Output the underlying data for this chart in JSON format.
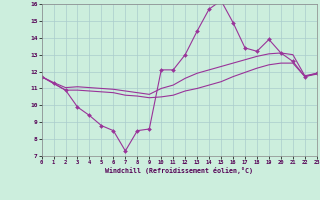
{
  "xlabel": "Windchill (Refroidissement éolien,°C)",
  "bg_color": "#cceedd",
  "grid_color": "#aacccc",
  "line_color": "#993399",
  "xlim": [
    0,
    23
  ],
  "ylim": [
    7,
    16
  ],
  "xticks": [
    0,
    1,
    2,
    3,
    4,
    5,
    6,
    7,
    8,
    9,
    10,
    11,
    12,
    13,
    14,
    15,
    16,
    17,
    18,
    19,
    20,
    21,
    22,
    23
  ],
  "yticks": [
    7,
    8,
    9,
    10,
    11,
    12,
    13,
    14,
    15,
    16
  ],
  "line_main_x": [
    0,
    1,
    2,
    3,
    4,
    5,
    6,
    7,
    8,
    9,
    10,
    11,
    12,
    13,
    14,
    15,
    16,
    17,
    18,
    19,
    20,
    21,
    22,
    23
  ],
  "line_main_y": [
    11.7,
    11.3,
    10.9,
    9.9,
    9.4,
    8.8,
    8.5,
    7.3,
    8.5,
    8.6,
    12.1,
    12.1,
    13.0,
    14.4,
    15.7,
    16.2,
    14.9,
    13.4,
    13.2,
    13.9,
    13.1,
    12.6,
    11.7,
    11.9
  ],
  "line_upper_x": [
    0,
    1,
    2,
    3,
    4,
    5,
    6,
    7,
    8,
    9,
    10,
    11,
    12,
    13,
    14,
    15,
    16,
    17,
    18,
    19,
    20,
    21,
    22,
    23
  ],
  "line_upper_y": [
    11.7,
    11.35,
    11.05,
    11.1,
    11.05,
    11.0,
    10.95,
    10.85,
    10.75,
    10.65,
    11.0,
    11.2,
    11.6,
    11.9,
    12.1,
    12.3,
    12.5,
    12.7,
    12.9,
    13.05,
    13.1,
    13.0,
    11.75,
    11.9
  ],
  "line_lower_x": [
    0,
    1,
    2,
    3,
    4,
    5,
    6,
    7,
    8,
    9,
    10,
    11,
    12,
    13,
    14,
    15,
    16,
    17,
    18,
    19,
    20,
    21,
    22,
    23
  ],
  "line_lower_y": [
    11.7,
    11.3,
    10.9,
    10.9,
    10.85,
    10.8,
    10.75,
    10.6,
    10.55,
    10.45,
    10.5,
    10.6,
    10.85,
    11.0,
    11.2,
    11.4,
    11.7,
    11.95,
    12.2,
    12.4,
    12.5,
    12.5,
    11.7,
    11.85
  ]
}
